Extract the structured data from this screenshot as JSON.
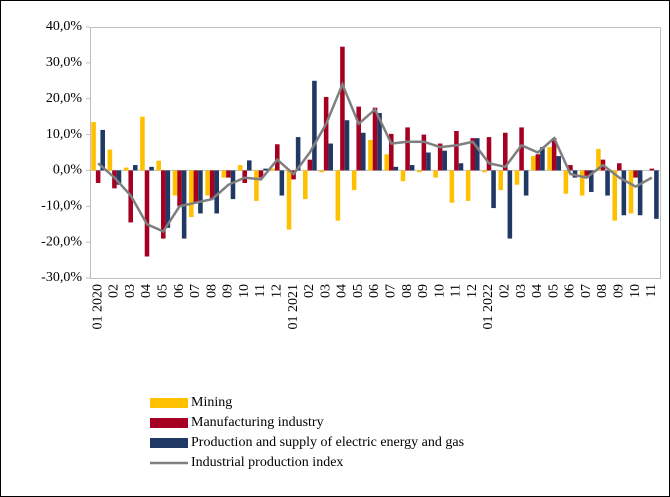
{
  "chart_data": {
    "type": "bar_line",
    "categories": [
      "01 2020",
      "02",
      "03",
      "04",
      "05",
      "06",
      "07",
      "08",
      "09",
      "10",
      "11",
      "12",
      "01 2021",
      "02",
      "03",
      "04",
      "05",
      "06",
      "07",
      "08",
      "09",
      "10",
      "11",
      "12",
      "01 2022",
      "02",
      "03",
      "04",
      "05",
      "06",
      "07",
      "08",
      "09",
      "10",
      "11"
    ],
    "series": [
      {
        "name": "Mining",
        "type": "bar",
        "color": "#ffc000",
        "values": [
          13.5,
          5.8,
          0.8,
          15,
          2.7,
          -7,
          -13,
          -7,
          -2,
          1.5,
          -8.5,
          0.5,
          -16.5,
          -8,
          -0.5,
          -14,
          -5.5,
          8.5,
          4.5,
          -3,
          -0.5,
          -2,
          -9,
          -8.5,
          -0.5,
          -5.5,
          -4,
          4,
          6.5,
          -6.5,
          -7,
          6,
          -14,
          -12,
          0
        ]
      },
      {
        "name": "Manufacturing industry",
        "type": "bar",
        "color": "#a50021",
        "values": [
          -3.5,
          -5,
          -14.5,
          -24,
          -19,
          -10,
          -9,
          -8,
          -2,
          -3.5,
          -2,
          7.3,
          -2.5,
          3,
          20.5,
          34.5,
          17.8,
          17.5,
          10.2,
          12,
          10,
          7.5,
          11,
          9,
          9.3,
          10.5,
          12,
          4.5,
          9,
          1.5,
          -1.5,
          3,
          2,
          -2,
          0.5
        ]
      },
      {
        "name": "Production and supply of electric energy and gas",
        "type": "bar",
        "color": "#1f3864",
        "values": [
          11.3,
          -4,
          1.5,
          1,
          -16,
          -19,
          -12,
          -12,
          -8,
          2.8,
          0.5,
          -7,
          9.3,
          25,
          7.5,
          14,
          10.5,
          16,
          1,
          1.5,
          5,
          5.5,
          2,
          9,
          -10.5,
          -19,
          -7,
          6.5,
          4,
          -2,
          -6,
          -7,
          -12.5,
          -12.5,
          -13.5
        ]
      },
      {
        "name": "Industrial production index",
        "type": "line",
        "color": "#7f7f7f",
        "values": [
          2,
          -2,
          -7,
          -15,
          -17,
          -10,
          -9,
          -8,
          -4,
          -2,
          -2.5,
          3,
          -1,
          5,
          13,
          24,
          13,
          17,
          7.5,
          8,
          8,
          6.5,
          7,
          8,
          2,
          1,
          7,
          5,
          9,
          -1,
          -2,
          1.5,
          -2,
          -4.5,
          -2
        ]
      }
    ],
    "ylim": [
      -30,
      40
    ],
    "yticks": [
      {
        "value": -30,
        "label": "-30,0%"
      },
      {
        "value": -20,
        "label": "-20,0%"
      },
      {
        "value": -10,
        "label": "-10,0%"
      },
      {
        "value": 0,
        "label": "0,0%"
      },
      {
        "value": 10,
        "label": "10,0%"
      },
      {
        "value": 20,
        "label": "20,0%"
      },
      {
        "value": 30,
        "label": "30,0%"
      },
      {
        "value": 40,
        "label": "40,0%"
      }
    ],
    "grid": false,
    "legend": "bottom"
  }
}
